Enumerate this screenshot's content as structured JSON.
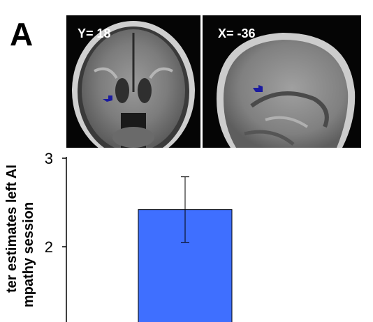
{
  "figure": {
    "panel_letter": "A",
    "images": [
      {
        "label": "Y= 18",
        "view": "coronal"
      },
      {
        "label": "X= -36",
        "view": "sagittal"
      }
    ],
    "roi_color": "#1a1aa0"
  },
  "chart_data": {
    "type": "bar",
    "categories": [
      ""
    ],
    "values": [
      2.42
    ],
    "error": [
      0.37
    ],
    "ylim": [
      1,
      3
    ],
    "yticks": [
      "3",
      "2"
    ],
    "ylabel_lines": [
      "ter estimates left AI",
      "mpathy session"
    ],
    "bar_color": "#3f6fff"
  }
}
